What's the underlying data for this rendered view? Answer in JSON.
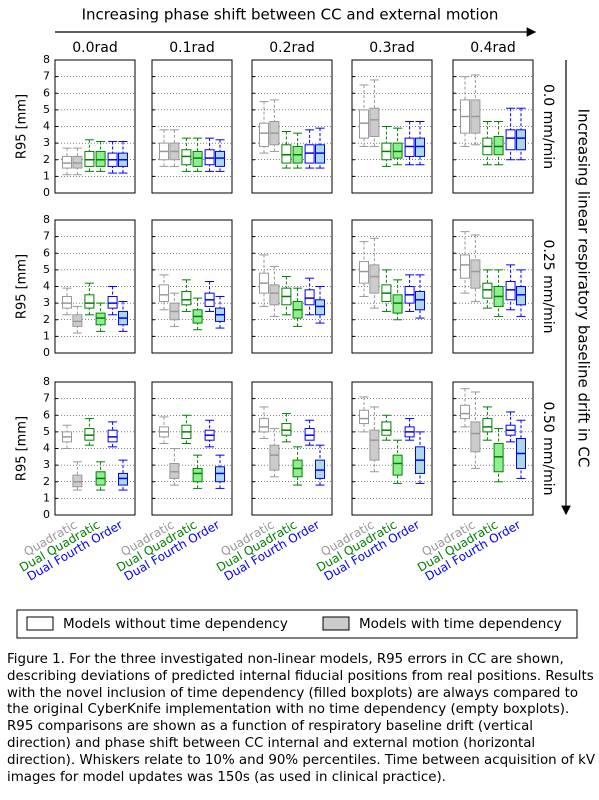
{
  "chart_data": {
    "type": "box",
    "title": "Increasing phase shift between CC and external motion",
    "row_axis_label": "Increasing linear respiratory baseline drift in CC",
    "ylabel": "R95 [mm]",
    "columns": [
      "0.0rad",
      "0.1rad",
      "0.2rad",
      "0.3rad",
      "0.4rad"
    ],
    "rows": [
      "0.0 mm/min",
      "0.25 mm/min",
      "0.50 mm/min"
    ],
    "categories": [
      "Quadratic",
      "Dual Quadratic",
      "Dual Fourth Order"
    ],
    "colors": [
      "#999999",
      "#008000",
      "#0000ff"
    ],
    "fills": [
      "#cccccc",
      "#90ee90",
      "#add8e6"
    ],
    "legend": [
      {
        "label": "Models without time dependency",
        "color": "#ffffff"
      },
      {
        "label": "Models with time dependency",
        "color": "#cccccc"
      }
    ],
    "ylim": [
      0,
      8
    ],
    "yticks": [
      0,
      1,
      2,
      3,
      4,
      5,
      6,
      7,
      8
    ],
    "grid": true,
    "panels": [
      [
        [
          [
            1.1,
            1.5,
            1.8,
            2.2,
            2.7
          ],
          [
            1.1,
            1.5,
            1.8,
            2.2,
            2.7
          ],
          [
            1.3,
            1.6,
            2.0,
            2.5,
            3.2
          ],
          [
            1.3,
            1.6,
            2.0,
            2.5,
            3.1
          ],
          [
            1.2,
            1.6,
            2.0,
            2.4,
            3.1
          ],
          [
            1.2,
            1.6,
            2.0,
            2.4,
            3.1
          ]
        ],
        [
          [
            1.6,
            2.0,
            2.5,
            3.0,
            3.8
          ],
          [
            1.6,
            2.0,
            2.5,
            3.0,
            3.8
          ],
          [
            1.3,
            1.7,
            2.2,
            2.6,
            3.3
          ],
          [
            1.3,
            1.6,
            2.1,
            2.5,
            3.3
          ],
          [
            1.3,
            1.7,
            2.1,
            2.6,
            3.3
          ],
          [
            1.3,
            1.6,
            2.1,
            2.5,
            3.2
          ]
        ],
        [
          [
            2.4,
            2.8,
            3.6,
            4.2,
            5.5
          ],
          [
            2.5,
            2.9,
            3.6,
            4.3,
            5.6
          ],
          [
            1.5,
            1.8,
            2.3,
            2.9,
            3.7
          ],
          [
            1.5,
            1.8,
            2.3,
            2.8,
            3.6
          ],
          [
            1.5,
            1.8,
            2.4,
            2.9,
            3.8
          ],
          [
            1.5,
            1.8,
            2.4,
            2.9,
            3.9
          ]
        ],
        [
          [
            2.8,
            3.3,
            4.2,
            5.0,
            6.5
          ],
          [
            2.8,
            3.4,
            4.4,
            5.1,
            6.8
          ],
          [
            1.6,
            2.0,
            2.5,
            3.0,
            4.0
          ],
          [
            1.7,
            2.1,
            2.5,
            3.0,
            3.9
          ],
          [
            1.7,
            2.2,
            2.8,
            3.3,
            4.3
          ],
          [
            1.7,
            2.2,
            2.8,
            3.3,
            4.3
          ]
        ],
        [
          [
            2.8,
            3.6,
            4.6,
            5.6,
            7.0
          ],
          [
            2.9,
            3.6,
            4.6,
            5.6,
            7.1
          ],
          [
            1.7,
            2.3,
            2.8,
            3.3,
            4.3
          ],
          [
            1.7,
            2.3,
            2.8,
            3.4,
            4.3
          ],
          [
            2.0,
            2.6,
            3.3,
            3.8,
            5.1
          ],
          [
            2.0,
            2.6,
            3.3,
            3.8,
            5.1
          ]
        ]
      ],
      [
        [
          [
            2.3,
            2.7,
            3.0,
            3.4,
            3.9
          ],
          [
            1.2,
            1.6,
            1.9,
            2.3,
            2.8
          ],
          [
            2.3,
            2.7,
            3.0,
            3.5,
            4.2
          ],
          [
            1.3,
            1.7,
            2.1,
            2.4,
            3.0
          ],
          [
            2.3,
            2.7,
            3.0,
            3.4,
            4.0
          ],
          [
            1.3,
            1.7,
            2.1,
            2.5,
            3.1
          ]
        ],
        [
          [
            2.6,
            3.1,
            3.5,
            4.1,
            4.7
          ],
          [
            1.6,
            2.0,
            2.5,
            3.0,
            3.6
          ],
          [
            2.5,
            2.9,
            3.2,
            3.7,
            4.4
          ],
          [
            1.4,
            1.8,
            2.2,
            2.6,
            3.3
          ],
          [
            2.5,
            2.8,
            3.2,
            3.6,
            4.3
          ],
          [
            1.5,
            1.9,
            2.3,
            2.7,
            3.4
          ]
        ],
        [
          [
            2.8,
            3.6,
            4.2,
            4.8,
            5.9
          ],
          [
            2.2,
            2.9,
            3.6,
            4.1,
            5.2
          ],
          [
            2.3,
            2.9,
            3.4,
            3.9,
            4.6
          ],
          [
            1.6,
            2.1,
            2.6,
            3.1,
            3.9
          ],
          [
            2.3,
            2.9,
            3.3,
            3.8,
            4.5
          ],
          [
            1.8,
            2.3,
            2.8,
            3.2,
            4.0
          ]
        ],
        [
          [
            3.4,
            4.2,
            4.9,
            5.5,
            6.7
          ],
          [
            2.7,
            3.6,
            4.6,
            5.3,
            6.9
          ],
          [
            2.5,
            3.1,
            3.6,
            4.1,
            5.0
          ],
          [
            2.0,
            2.4,
            3.0,
            3.5,
            4.4
          ],
          [
            2.5,
            3.0,
            3.5,
            4.0,
            4.7
          ],
          [
            2.1,
            2.6,
            3.2,
            3.7,
            4.7
          ]
        ],
        [
          [
            3.6,
            4.5,
            5.3,
            5.9,
            7.3
          ],
          [
            3.1,
            3.9,
            4.9,
            5.6,
            7.1
          ],
          [
            2.7,
            3.3,
            3.8,
            4.2,
            5.0
          ],
          [
            2.2,
            2.8,
            3.4,
            4.0,
            5.0
          ],
          [
            2.6,
            3.2,
            3.8,
            4.3,
            5.3
          ],
          [
            2.2,
            2.9,
            3.5,
            4.0,
            5.0
          ]
        ]
      ],
      [
        [
          [
            4.0,
            4.4,
            4.7,
            5.0,
            5.4
          ],
          [
            1.5,
            1.7,
            2.0,
            2.4,
            3.2
          ],
          [
            4.2,
            4.5,
            4.8,
            5.2,
            5.8
          ],
          [
            1.5,
            1.8,
            2.2,
            2.6,
            3.2
          ],
          [
            4.1,
            4.4,
            4.7,
            5.1,
            5.6
          ],
          [
            1.5,
            1.8,
            2.2,
            2.5,
            3.3
          ]
        ],
        [
          [
            4.3,
            4.7,
            5.0,
            5.3,
            5.9
          ],
          [
            1.8,
            2.2,
            2.6,
            3.1,
            4.0
          ],
          [
            4.3,
            4.6,
            5.0,
            5.4,
            6.0
          ],
          [
            1.6,
            2.0,
            2.5,
            2.8,
            3.6
          ],
          [
            4.1,
            4.5,
            4.8,
            5.1,
            5.7
          ],
          [
            1.6,
            2.0,
            2.5,
            2.9,
            3.6
          ]
        ],
        [
          [
            4.6,
            5.0,
            5.3,
            5.8,
            6.5
          ],
          [
            2.3,
            2.7,
            3.6,
            4.2,
            5.2
          ],
          [
            4.4,
            4.8,
            5.1,
            5.5,
            6.1
          ],
          [
            1.8,
            2.3,
            2.8,
            3.3,
            4.1
          ],
          [
            4.2,
            4.5,
            4.8,
            5.2,
            5.7
          ],
          [
            1.8,
            2.2,
            2.7,
            3.3,
            4.2
          ]
        ],
        [
          [
            5.0,
            5.5,
            5.8,
            6.3,
            7.1
          ],
          [
            2.6,
            3.3,
            4.5,
            5.1,
            6.5
          ],
          [
            4.5,
            4.8,
            5.1,
            5.6,
            6.0
          ],
          [
            1.9,
            2.4,
            3.1,
            3.6,
            4.5
          ],
          [
            4.5,
            4.7,
            5.0,
            5.3,
            5.8
          ],
          [
            1.9,
            2.5,
            3.3,
            4.1,
            5.0
          ]
        ],
        [
          [
            5.3,
            5.8,
            6.1,
            6.6,
            7.6
          ],
          [
            2.8,
            3.8,
            4.9,
            5.6,
            7.4
          ],
          [
            4.5,
            5.0,
            5.3,
            5.8,
            6.5
          ],
          [
            2.0,
            2.6,
            3.5,
            4.3,
            5.2
          ],
          [
            4.4,
            4.8,
            5.1,
            5.4,
            6.2
          ],
          [
            2.2,
            2.8,
            3.7,
            4.6,
            5.7
          ]
        ]
      ]
    ]
  },
  "caption": "Figure 1. For the three investigated non-linear models, R95 errors in CC are shown, describing deviations of predicted internal fiducial positions from real positions. Results with the novel inclusion of time dependency (filled boxplots) are always compared to the original CyberKnife implementation with no time dependency (empty boxplots). R95 comparisons are shown as a function of respiratory baseline drift (vertical direction) and phase shift between CC internal and external motion (horizontal direction). Whiskers relate to 10% and 90% percentiles. Time between acquisition of kV images for model updates was 150s (as used in clinical practice)."
}
